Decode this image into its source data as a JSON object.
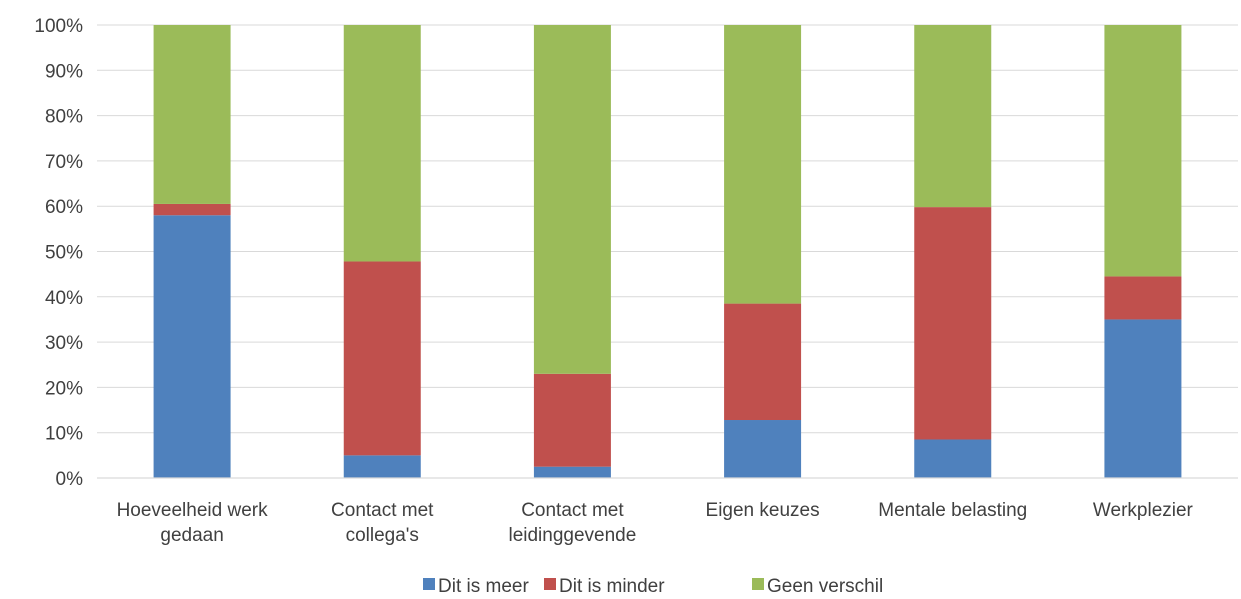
{
  "chart_data": {
    "type": "bar",
    "stacked": true,
    "percent": true,
    "categories": [
      [
        "Hoeveelheid werk",
        "gedaan"
      ],
      [
        "Contact met",
        "collega's"
      ],
      [
        "Contact met",
        "leidinggevende"
      ],
      [
        "Eigen keuzes"
      ],
      [
        "Mentale belasting"
      ],
      [
        "Werkplezier"
      ]
    ],
    "series": [
      {
        "name": "Dit is meer",
        "color": "#4f81bd",
        "values": [
          58,
          5,
          2.5,
          12.8,
          8.5,
          35
        ]
      },
      {
        "name": "Dit is minder",
        "color": "#c0504d",
        "values": [
          2.5,
          42.8,
          20.5,
          25.7,
          51.3,
          9.5
        ]
      },
      {
        "name": "Geen verschil",
        "color": "#9bbb59",
        "values": [
          39.5,
          52.2,
          77,
          61.5,
          40.2,
          55.5
        ]
      }
    ],
    "ylim": [
      0,
      100
    ],
    "yticks": [
      "0%",
      "10%",
      "20%",
      "30%",
      "40%",
      "50%",
      "60%",
      "70%",
      "80%",
      "90%",
      "100%"
    ],
    "grid": true,
    "legend": "bottom-center",
    "title": "",
    "xlabel": "",
    "ylabel": ""
  }
}
